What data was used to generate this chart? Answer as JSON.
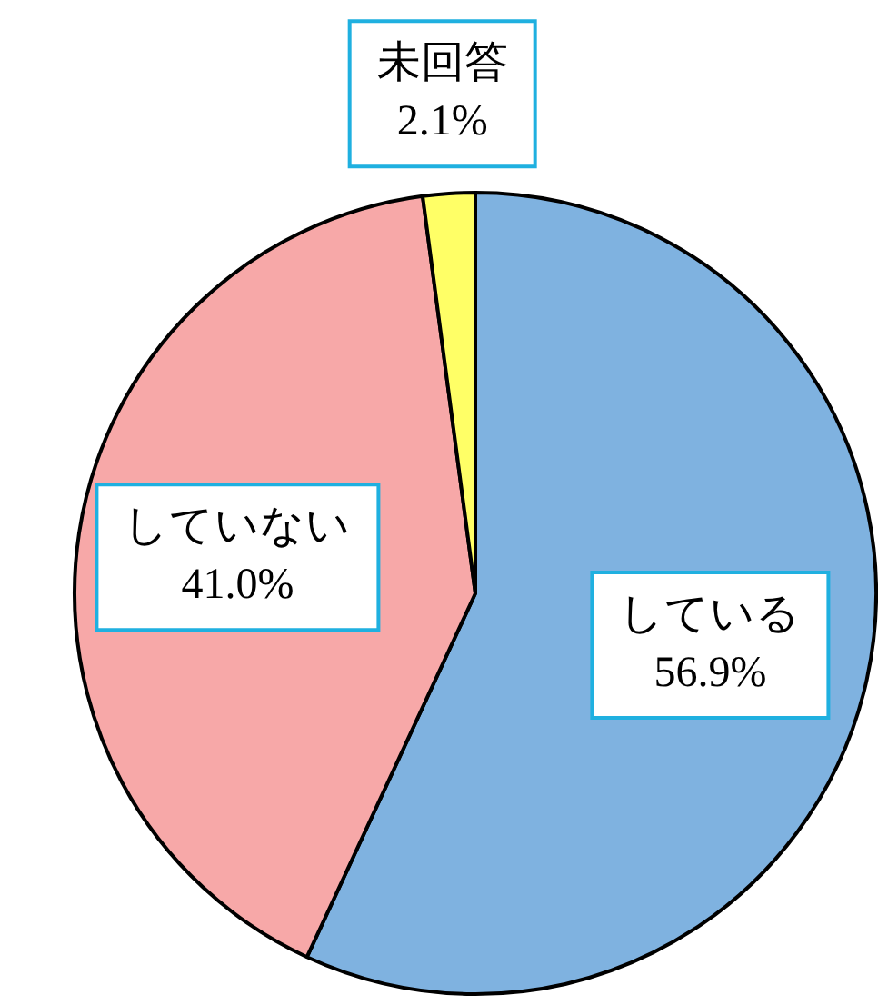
{
  "chart_data": {
    "type": "pie",
    "categories": [
      "している",
      "していない",
      "未回答"
    ],
    "values": [
      56.9,
      41.0,
      2.1
    ],
    "colors": [
      "#7fb2e0",
      "#f7a8a8",
      "#ffff66"
    ],
    "value_labels": [
      "56.9%",
      "41.0%",
      "2.1%"
    ]
  }
}
